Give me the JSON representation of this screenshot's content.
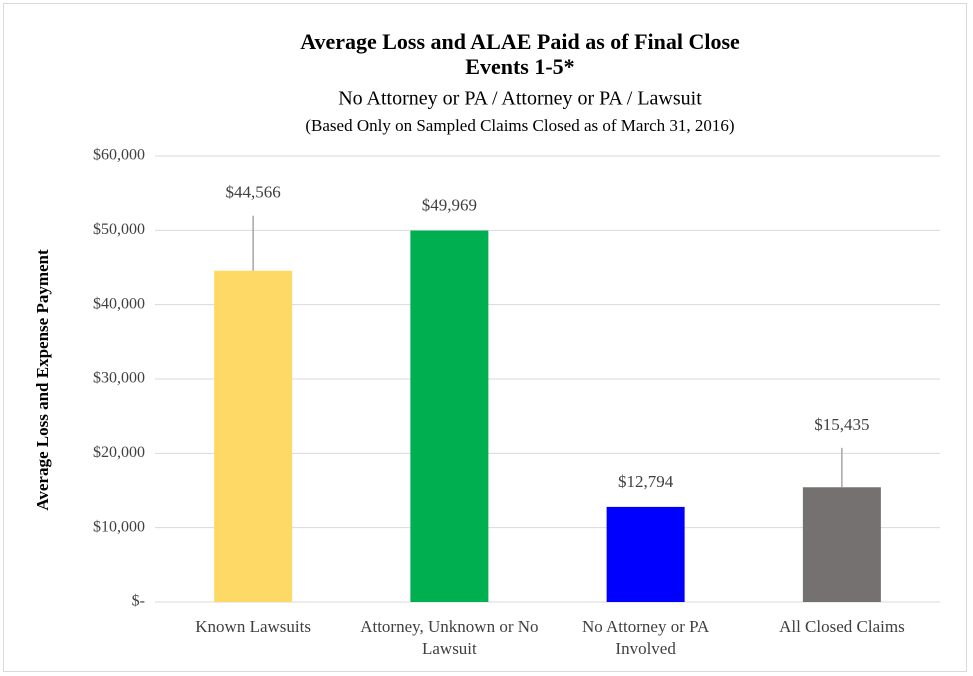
{
  "chart_data": {
    "type": "bar",
    "title": "Average Loss and ALAE Paid as of Final Close",
    "subtitles": [
      "Events 1-5*",
      "No Attorney or PA / Attorney or PA / Lawsuit",
      "(Based Only on Sampled Claims Closed as of March 31, 2016)"
    ],
    "y_label": "Average Loss and Expense Payment",
    "categories": [
      "Known Lawsuits",
      "Attorney, Unknown or No Lawsuit",
      "No Attorney or PA Involved",
      "All Closed Claims"
    ],
    "values": [
      44566,
      49969,
      12794,
      15435
    ],
    "value_labels": [
      "$44,566",
      "$49,969",
      "$12,794",
      "$15,435"
    ],
    "errors": [
      7400,
      null,
      null,
      5300
    ],
    "colors": [
      "#ffd966",
      "#00b050",
      "#0000ff",
      "#767171"
    ],
    "ylim": [
      0,
      60000
    ],
    "yticks": [
      {
        "value": 0,
        "label": "$-"
      },
      {
        "value": 10000,
        "label": "$10,000"
      },
      {
        "value": 20000,
        "label": "$20,000"
      },
      {
        "value": 30000,
        "label": "$30,000"
      },
      {
        "value": 40000,
        "label": "$40,000"
      },
      {
        "value": 50000,
        "label": "$50,000"
      },
      {
        "value": 60000,
        "label": "$60,000"
      }
    ],
    "grid": true
  }
}
